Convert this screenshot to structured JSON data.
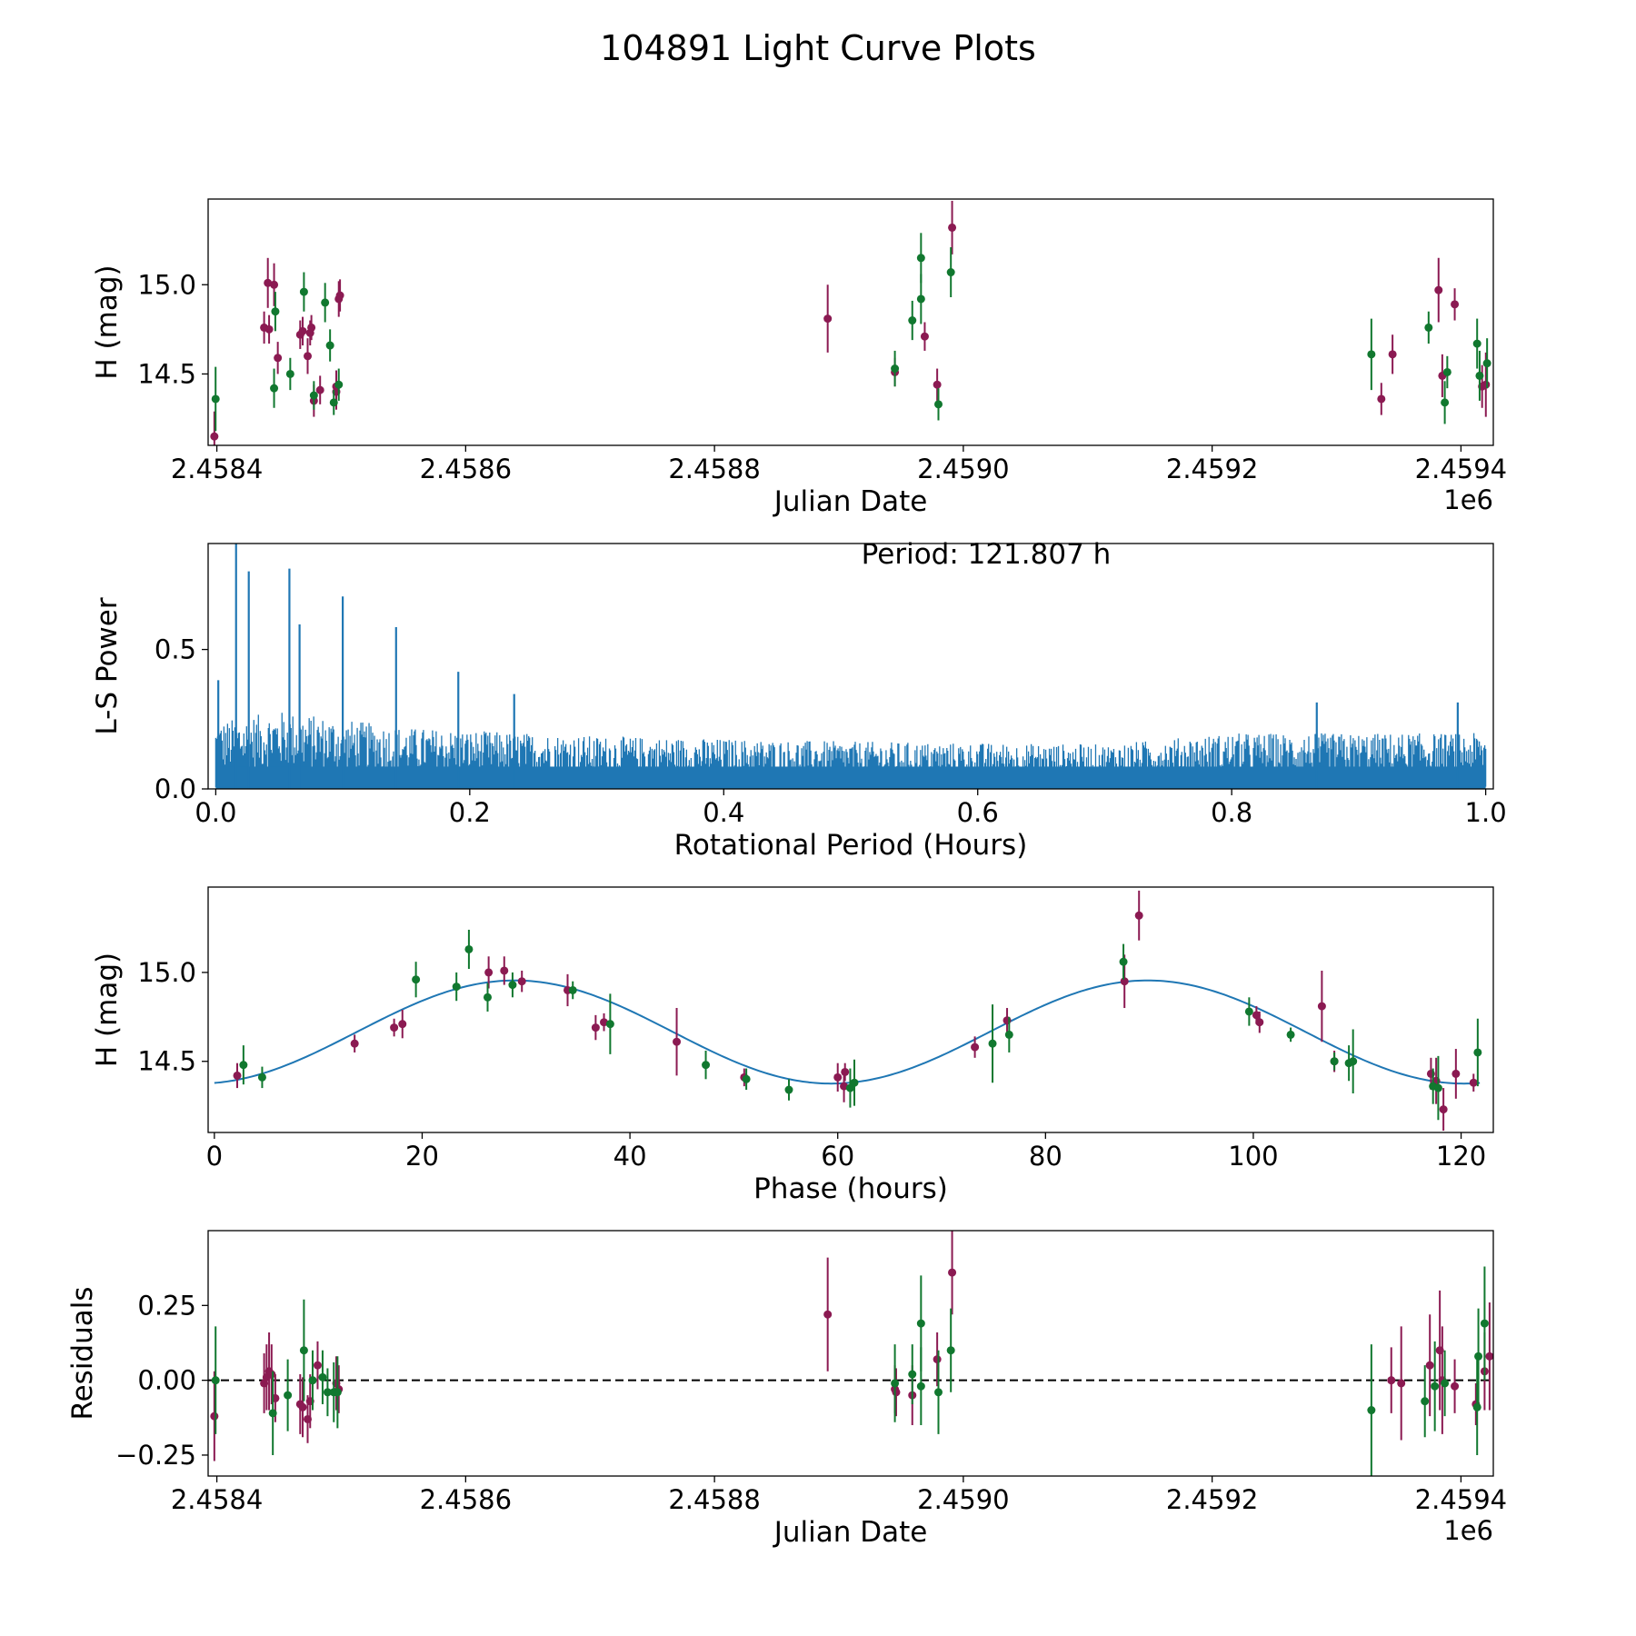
{
  "title": "104891 Light Curve Plots",
  "colors": {
    "a": "#8b1a52",
    "b": "#11782f",
    "line": "#1f77b4",
    "bg": "#ffffff"
  },
  "chart_data": [
    {
      "id": "p1",
      "type": "scatter",
      "xlabel": "Julian Date",
      "ylabel": "H (mag)",
      "x_offset_label": "1e6",
      "xlim": [
        2458393,
        2459426
      ],
      "ylim": [
        14.1,
        15.48
      ],
      "xticks": [
        {
          "v": 2458400,
          "label": "2.4584"
        },
        {
          "v": 2458600,
          "label": "2.4586"
        },
        {
          "v": 2458800,
          "label": "2.4588"
        },
        {
          "v": 2459000,
          "label": "2.4590"
        },
        {
          "v": 2459200,
          "label": "2.4592"
        },
        {
          "v": 2459400,
          "label": "2.4594"
        }
      ],
      "yticks": [
        {
          "v": 14.5,
          "label": "14.5"
        },
        {
          "v": 15.0,
          "label": "15.0"
        }
      ],
      "series": [
        {
          "name": "purple",
          "color_key": "a",
          "points": [
            [
              2458398,
              14.15,
              0.14
            ],
            [
              2458438,
              14.76,
              0.09
            ],
            [
              2458441,
              15.01,
              0.14
            ],
            [
              2458442,
              14.75,
              0.08
            ],
            [
              2458446,
              15.0,
              0.12
            ],
            [
              2458449,
              14.59,
              0.09
            ],
            [
              2458467,
              14.72,
              0.08
            ],
            [
              2458469,
              14.74,
              0.08
            ],
            [
              2458473,
              14.6,
              0.1
            ],
            [
              2458475,
              14.73,
              0.07
            ],
            [
              2458476,
              14.76,
              0.07
            ],
            [
              2458478,
              14.35,
              0.09
            ],
            [
              2458483,
              14.41,
              0.08
            ],
            [
              2458496,
              14.4,
              0.1
            ],
            [
              2458496,
              14.43,
              0.09
            ],
            [
              2458498,
              14.92,
              0.1
            ],
            [
              2458499,
              14.94,
              0.09
            ],
            [
              2458891,
              14.81,
              0.19
            ],
            [
              2458945,
              14.51,
              0.08
            ],
            [
              2458969,
              14.71,
              0.08
            ],
            [
              2458979,
              14.44,
              0.09
            ],
            [
              2458991,
              15.32,
              0.15
            ],
            [
              2459336,
              14.36,
              0.09
            ],
            [
              2459345,
              14.61,
              0.11
            ],
            [
              2459382,
              14.97,
              0.18
            ],
            [
              2459385,
              14.49,
              0.12
            ],
            [
              2459395,
              14.89,
              0.09
            ],
            [
              2459417,
              14.43,
              0.12
            ],
            [
              2459420,
              14.44,
              0.18
            ]
          ]
        },
        {
          "name": "green",
          "color_key": "b",
          "points": [
            [
              2458399,
              14.36,
              0.18
            ],
            [
              2458446,
              14.42,
              0.11
            ],
            [
              2458447,
              14.85,
              0.11
            ],
            [
              2458459,
              14.5,
              0.09
            ],
            [
              2458470,
              14.96,
              0.11
            ],
            [
              2458478,
              14.38,
              0.08
            ],
            [
              2458487,
              14.9,
              0.11
            ],
            [
              2458491,
              14.66,
              0.09
            ],
            [
              2458494,
              14.34,
              0.07
            ],
            [
              2458498,
              14.44,
              0.09
            ],
            [
              2458945,
              14.53,
              0.1
            ],
            [
              2458959,
              14.8,
              0.11
            ],
            [
              2458966,
              14.92,
              0.14
            ],
            [
              2458966,
              15.15,
              0.14
            ],
            [
              2458980,
              14.33,
              0.09
            ],
            [
              2458990,
              15.07,
              0.14
            ],
            [
              2459328,
              14.61,
              0.2
            ],
            [
              2459374,
              14.76,
              0.09
            ],
            [
              2459387,
              14.34,
              0.12
            ],
            [
              2459389,
              14.51,
              0.09
            ],
            [
              2459413,
              14.67,
              0.14
            ],
            [
              2459415,
              14.49,
              0.14
            ],
            [
              2459421,
              14.56,
              0.14
            ]
          ]
        }
      ]
    },
    {
      "id": "p2",
      "type": "line",
      "xlabel": "Rotational Period (Hours)",
      "ylabel": "L-S Power",
      "annotation": "Period: 121.807 h",
      "xlim": [
        -0.006,
        1.006
      ],
      "ylim": [
        0,
        0.88
      ],
      "xticks": [
        {
          "v": 0.0,
          "label": "0.0"
        },
        {
          "v": 0.2,
          "label": "0.2"
        },
        {
          "v": 0.4,
          "label": "0.4"
        },
        {
          "v": 0.6,
          "label": "0.6"
        },
        {
          "v": 0.8,
          "label": "0.8"
        },
        {
          "v": 1.0,
          "label": "1.0"
        }
      ],
      "yticks": [
        {
          "v": 0.0,
          "label": "0.0"
        },
        {
          "v": 0.5,
          "label": "0.5"
        }
      ],
      "envelope": [
        [
          0.0,
          0.24
        ],
        [
          0.05,
          0.28
        ],
        [
          0.15,
          0.22
        ],
        [
          0.3,
          0.19
        ],
        [
          0.5,
          0.17
        ],
        [
          0.7,
          0.16
        ],
        [
          0.8,
          0.2
        ],
        [
          1.0,
          0.2
        ]
      ],
      "peaks": [
        [
          0.002,
          0.39
        ],
        [
          0.016,
          0.88
        ],
        [
          0.026,
          0.78
        ],
        [
          0.058,
          0.79
        ],
        [
          0.066,
          0.59
        ],
        [
          0.1,
          0.69
        ],
        [
          0.142,
          0.58
        ],
        [
          0.191,
          0.42
        ],
        [
          0.235,
          0.34
        ],
        [
          0.867,
          0.31
        ],
        [
          0.978,
          0.31
        ]
      ]
    },
    {
      "id": "p3",
      "type": "scatter",
      "xlabel": "Phase (hours)",
      "ylabel": "H (mag)",
      "xlim": [
        -0.6,
        123.1
      ],
      "ylim": [
        14.1,
        15.48
      ],
      "xticks": [
        {
          "v": 0,
          "label": "0"
        },
        {
          "v": 20,
          "label": "20"
        },
        {
          "v": 40,
          "label": "40"
        },
        {
          "v": 60,
          "label": "60"
        },
        {
          "v": 80,
          "label": "80"
        },
        {
          "v": 100,
          "label": "100"
        },
        {
          "v": 120,
          "label": "120"
        }
      ],
      "yticks": [
        {
          "v": 14.5,
          "label": "14.5"
        },
        {
          "v": 15.0,
          "label": "15.0"
        }
      ],
      "fit": {
        "mean": 14.665,
        "amplitude": 0.29,
        "period_hours": 60.9,
        "phase_zero_hours": 13.7,
        "x_range": [
          0,
          121.8
        ]
      },
      "series": [
        {
          "name": "purple",
          "color_key": "a",
          "points": [
            [
              2.2,
              14.42,
              0.07
            ],
            [
              13.5,
              14.6,
              0.05
            ],
            [
              17.3,
              14.69,
              0.05
            ],
            [
              18.1,
              14.71,
              0.08
            ],
            [
              26.4,
              15.0,
              0.09
            ],
            [
              27.9,
              15.01,
              0.08
            ],
            [
              29.6,
              14.95,
              0.06
            ],
            [
              34.0,
              14.9,
              0.09
            ],
            [
              36.7,
              14.69,
              0.07
            ],
            [
              37.5,
              14.72,
              0.05
            ],
            [
              44.5,
              14.61,
              0.19
            ],
            [
              51.0,
              14.41,
              0.05
            ],
            [
              60.0,
              14.41,
              0.08
            ],
            [
              60.6,
              14.36,
              0.09
            ],
            [
              60.7,
              14.44,
              0.05
            ],
            [
              73.2,
              14.58,
              0.06
            ],
            [
              76.3,
              14.73,
              0.07
            ],
            [
              87.6,
              14.95,
              0.15
            ],
            [
              89.0,
              15.32,
              0.14
            ],
            [
              100.3,
              14.76,
              0.05
            ],
            [
              100.6,
              14.72,
              0.06
            ],
            [
              106.6,
              14.81,
              0.2
            ],
            [
              107.8,
              14.5,
              0.06
            ],
            [
              117.1,
              14.43,
              0.09
            ],
            [
              117.6,
              14.39,
              0.13
            ],
            [
              118.3,
              14.23,
              0.12
            ],
            [
              119.5,
              14.43,
              0.14
            ],
            [
              121.2,
              14.38,
              0.05
            ]
          ]
        },
        {
          "name": "green",
          "color_key": "b",
          "points": [
            [
              2.8,
              14.48,
              0.11
            ],
            [
              4.6,
              14.41,
              0.06
            ],
            [
              19.4,
              14.96,
              0.1
            ],
            [
              23.3,
              14.92,
              0.08
            ],
            [
              24.5,
              15.13,
              0.11
            ],
            [
              26.3,
              14.86,
              0.08
            ],
            [
              28.7,
              14.93,
              0.07
            ],
            [
              34.5,
              14.9,
              0.05
            ],
            [
              38.1,
              14.71,
              0.17
            ],
            [
              47.3,
              14.48,
              0.08
            ],
            [
              51.2,
              14.4,
              0.06
            ],
            [
              55.3,
              14.34,
              0.06
            ],
            [
              61.2,
              14.35,
              0.11
            ],
            [
              61.6,
              14.38,
              0.13
            ],
            [
              74.9,
              14.6,
              0.22
            ],
            [
              76.5,
              14.65,
              0.1
            ],
            [
              87.5,
              15.06,
              0.1
            ],
            [
              99.6,
              14.78,
              0.08
            ],
            [
              103.6,
              14.65,
              0.04
            ],
            [
              107.8,
              14.5,
              0.05
            ],
            [
              109.2,
              14.49,
              0.1
            ],
            [
              109.6,
              14.5,
              0.18
            ],
            [
              117.3,
              14.36,
              0.1
            ],
            [
              117.8,
              14.35,
              0.18
            ],
            [
              121.6,
              14.55,
              0.19
            ]
          ]
        }
      ]
    },
    {
      "id": "p4",
      "type": "scatter",
      "xlabel": "Julian Date",
      "ylabel": "Residuals",
      "x_offset_label": "1e6",
      "xlim": [
        2458393,
        2459426
      ],
      "ylim": [
        -0.32,
        0.5
      ],
      "reference_line": 0.0,
      "xticks": [
        {
          "v": 2458400,
          "label": "2.4584"
        },
        {
          "v": 2458600,
          "label": "2.4586"
        },
        {
          "v": 2458800,
          "label": "2.4588"
        },
        {
          "v": 2459000,
          "label": "2.4590"
        },
        {
          "v": 2459200,
          "label": "2.4592"
        },
        {
          "v": 2459400,
          "label": "2.4594"
        }
      ],
      "yticks": [
        {
          "v": -0.25,
          "label": "−0.25"
        },
        {
          "v": 0.0,
          "label": "0.00"
        },
        {
          "v": 0.25,
          "label": "0.25"
        }
      ],
      "series": [
        {
          "name": "purple",
          "color_key": "a",
          "points": [
            [
              2458398,
              -0.12,
              0.15
            ],
            [
              2458438,
              -0.01,
              0.1
            ],
            [
              2458440,
              0.01,
              0.11
            ],
            [
              2458442,
              0.03,
              0.13
            ],
            [
              2458444,
              0.02,
              0.1
            ],
            [
              2458447,
              -0.06,
              0.08
            ],
            [
              2458467,
              -0.08,
              0.1
            ],
            [
              2458469,
              -0.09,
              0.1
            ],
            [
              2458473,
              -0.13,
              0.08
            ],
            [
              2458475,
              -0.07,
              0.09
            ],
            [
              2458481,
              0.05,
              0.08
            ],
            [
              2458496,
              -0.01,
              0.09
            ],
            [
              2458498,
              -0.03,
              0.08
            ],
            [
              2458891,
              0.22,
              0.19
            ],
            [
              2458945,
              -0.03,
              0.08
            ],
            [
              2458946,
              -0.04,
              0.08
            ],
            [
              2458959,
              -0.05,
              0.1
            ],
            [
              2458979,
              0.07,
              0.09
            ],
            [
              2458991,
              0.36,
              0.14
            ],
            [
              2459344,
              0.0,
              0.11
            ],
            [
              2459352,
              -0.01,
              0.19
            ],
            [
              2459375,
              0.05,
              0.17
            ],
            [
              2459383,
              0.1,
              0.2
            ],
            [
              2459385,
              0.0,
              0.18
            ],
            [
              2459395,
              -0.02,
              0.09
            ],
            [
              2459412,
              -0.08,
              0.07
            ],
            [
              2459419,
              0.03,
              0.13
            ],
            [
              2459423,
              0.08,
              0.18
            ]
          ]
        },
        {
          "name": "green",
          "color_key": "b",
          "points": [
            [
              2458399,
              0.0,
              0.18
            ],
            [
              2458445,
              -0.11,
              0.14
            ],
            [
              2458457,
              -0.05,
              0.12
            ],
            [
              2458470,
              0.1,
              0.17
            ],
            [
              2458477,
              0.0,
              0.1
            ],
            [
              2458485,
              0.01,
              0.09
            ],
            [
              2458489,
              -0.04,
              0.08
            ],
            [
              2458494,
              -0.04,
              0.1
            ],
            [
              2458497,
              -0.04,
              0.12
            ],
            [
              2458945,
              -0.01,
              0.13
            ],
            [
              2458959,
              0.02,
              0.1
            ],
            [
              2458966,
              0.19,
              0.16
            ],
            [
              2458966,
              -0.02,
              0.13
            ],
            [
              2458980,
              -0.04,
              0.14
            ],
            [
              2458990,
              0.1,
              0.14
            ],
            [
              2459328,
              -0.1,
              0.22
            ],
            [
              2459371,
              -0.07,
              0.12
            ],
            [
              2459379,
              -0.02,
              0.15
            ],
            [
              2459387,
              -0.01,
              0.11
            ],
            [
              2459413,
              -0.09,
              0.16
            ],
            [
              2459414,
              0.08,
              0.16
            ],
            [
              2459419,
              0.19,
              0.19
            ]
          ]
        }
      ]
    }
  ]
}
